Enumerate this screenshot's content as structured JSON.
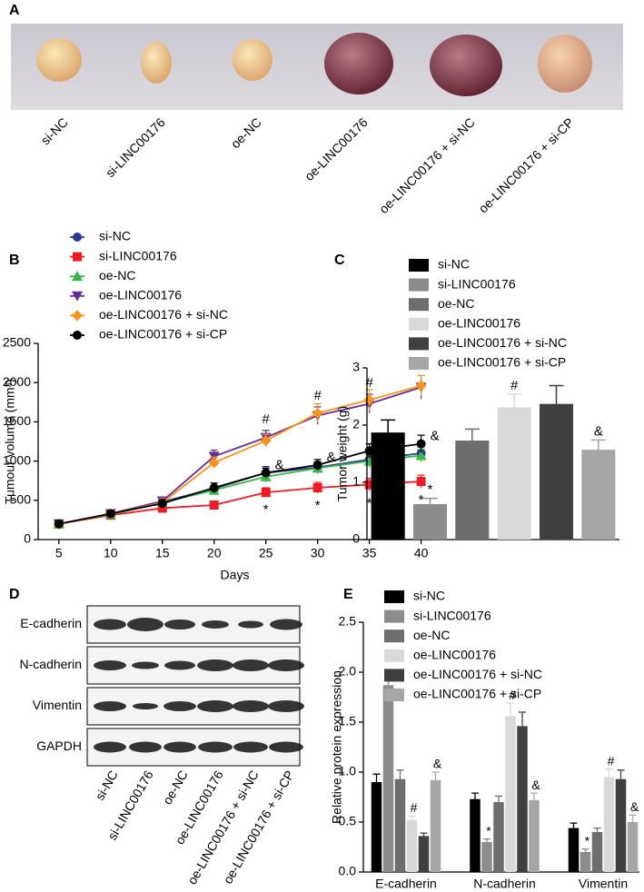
{
  "photo": {
    "panel_label": "A",
    "samples": [
      "si-NC",
      "si-LINC00176",
      "oe-NC",
      "oe-LINC00176",
      "oe-LINC00176 + si-NC",
      "oe-LINC00176 + si-CP"
    ]
  },
  "blot": {
    "panel_label": "D",
    "proteins": [
      "E-cadherin",
      "N-cadherin",
      "Vimentin",
      "GAPDH"
    ],
    "samples": [
      "si-NC",
      "si-LINC00176",
      "oe-NC",
      "oe-LINC00176",
      "oe-LINC00176 + si-NC",
      "oe-LINC00176 + si-CP"
    ]
  },
  "chart_data": [
    {
      "type": "line",
      "panel_label": "B",
      "x": [
        5,
        10,
        15,
        20,
        25,
        30,
        35,
        40
      ],
      "xlim": [
        3,
        41
      ],
      "xticks": [
        5,
        10,
        15,
        20,
        25,
        30,
        35,
        40
      ],
      "ylim": [
        0,
        2500
      ],
      "yticks": [
        0,
        500,
        1000,
        1500,
        2000,
        2500
      ],
      "x_label": "Days",
      "y_label": "Tumour volume (mm³)",
      "series": [
        {
          "name": "si-NC",
          "color": "#2b3990",
          "marker": "circle",
          "values": [
            200,
            320,
            480,
            650,
            850,
            920,
            1020,
            1100
          ],
          "errors": [
            30,
            40,
            60,
            70,
            80,
            70,
            60,
            80
          ]
        },
        {
          "name": "si-LINC00176",
          "color": "#ed1c24",
          "marker": "square",
          "values": [
            200,
            310,
            400,
            440,
            600,
            660,
            700,
            740
          ],
          "errors": [
            30,
            30,
            40,
            50,
            60,
            70,
            80,
            80
          ],
          "significance": [
            null,
            null,
            null,
            null,
            "*",
            "*",
            "*",
            "*"
          ],
          "significance_position": "below"
        },
        {
          "name": "oe-NC",
          "color": "#39b54a",
          "marker": "triangle-up",
          "values": [
            200,
            320,
            470,
            630,
            800,
            910,
            1000,
            1070
          ],
          "errors": [
            30,
            40,
            50,
            60,
            70,
            70,
            80,
            80
          ]
        },
        {
          "name": "oe-LINC00176",
          "color": "#662d91",
          "marker": "triangle-down",
          "values": [
            200,
            330,
            490,
            1060,
            1300,
            1580,
            1730,
            1940
          ],
          "errors": [
            30,
            40,
            50,
            80,
            90,
            110,
            120,
            150
          ],
          "significance": [
            null,
            null,
            null,
            null,
            "#",
            "#",
            "#",
            "#"
          ],
          "significance_position": "above"
        },
        {
          "name": "oe-LINC00176 + si-NC",
          "color": "#f7941d",
          "marker": "diamond",
          "values": [
            200,
            330,
            470,
            980,
            1260,
            1610,
            1780,
            1960
          ],
          "errors": [
            30,
            40,
            50,
            70,
            80,
            120,
            130,
            130
          ]
        },
        {
          "name": "oe-LINC00176 + si-CP",
          "color": "#000000",
          "marker": "circle",
          "values": [
            200,
            330,
            460,
            660,
            850,
            950,
            1130,
            1220
          ],
          "errors": [
            30,
            40,
            50,
            60,
            60,
            70,
            90,
            110
          ],
          "significance": [
            null,
            null,
            null,
            null,
            "&",
            "&",
            "&",
            "&"
          ],
          "significance_position": "right"
        }
      ]
    },
    {
      "type": "bar",
      "panel_label": "C",
      "categories": [
        "si-NC",
        "si-LINC00176",
        "oe-NC",
        "oe-LINC00176",
        "oe-LINC00176 + si-NC",
        "oe-LINC00176 + si-CP"
      ],
      "values": [
        1.87,
        0.62,
        1.73,
        2.31,
        2.37,
        1.57
      ],
      "errors": [
        0.22,
        0.1,
        0.2,
        0.23,
        0.32,
        0.17
      ],
      "colors": [
        "#000000",
        "#8c8c8c",
        "#6d6d6d",
        "#d9d9d9",
        "#3f3f3f",
        "#a6a6a6"
      ],
      "significance": [
        null,
        "*",
        null,
        "#",
        null,
        "&"
      ],
      "ylim": [
        0,
        3
      ],
      "yticks": [
        0,
        1,
        2,
        3
      ],
      "y_label": "Tumor weight (g)"
    },
    {
      "type": "grouped_bar",
      "panel_label": "E",
      "categories": [
        "E-cadherin",
        "N-cadherin",
        "Vimentin"
      ],
      "ylim": [
        0,
        2.5
      ],
      "yticks": [
        {
          "value": 0,
          "label": "0.0"
        },
        0.5,
        {
          "value": 1,
          "label": "1.0"
        },
        1.5,
        {
          "value": 2,
          "label": "2.0"
        },
        2.5
      ],
      "y_label": "Relative protein expression",
      "series": [
        {
          "name": "si-NC",
          "color": "#000000",
          "values": [
            0.9,
            0.73,
            0.44
          ],
          "errors": [
            0.08,
            0.06,
            0.05
          ]
        },
        {
          "name": "si-LINC00176",
          "color": "#8c8c8c",
          "values": [
            1.87,
            0.3,
            0.2
          ],
          "errors": [
            0.15,
            0.03,
            0.03
          ],
          "significance": [
            "*",
            "*",
            "*"
          ]
        },
        {
          "name": "oe-NC",
          "color": "#6d6d6d",
          "values": [
            0.93,
            0.7,
            0.4
          ],
          "errors": [
            0.09,
            0.06,
            0.04
          ]
        },
        {
          "name": "oe-LINC00176",
          "color": "#d9d9d9",
          "values": [
            0.52,
            1.56,
            0.95
          ],
          "errors": [
            0.04,
            0.13,
            0.08
          ],
          "significance": [
            "#",
            "#",
            "#"
          ]
        },
        {
          "name": "oe-LINC00176 + si-NC",
          "color": "#3f3f3f",
          "values": [
            0.36,
            1.46,
            0.93
          ],
          "errors": [
            0.03,
            0.14,
            0.09
          ]
        },
        {
          "name": "oe-LINC00176 + si-CP",
          "color": "#a6a6a6",
          "values": [
            0.92,
            0.72,
            0.5
          ],
          "errors": [
            0.08,
            0.07,
            0.07
          ],
          "significance": [
            "&",
            "&",
            "&"
          ]
        }
      ]
    }
  ]
}
